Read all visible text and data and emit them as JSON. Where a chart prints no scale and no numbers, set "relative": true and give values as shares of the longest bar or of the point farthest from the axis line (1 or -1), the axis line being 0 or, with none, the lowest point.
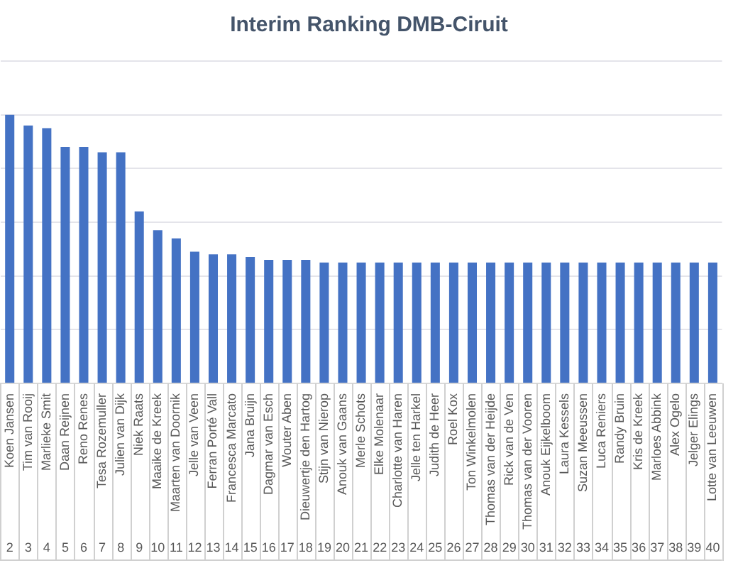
{
  "chart_data": {
    "type": "bar",
    "title": "Interim Ranking DMB-Ciruit",
    "categories": [
      "Koen Jansen",
      "Tim van Rooij",
      "Marlieke Smit",
      "Daan Reijnen",
      "Reno Renes",
      "Tesa Rozemuller",
      "Julien van Dijk",
      "Niek Raats",
      "Maaike de Kreek",
      "Maarten van Doornik",
      "Jelle van Veen",
      "Ferran Porté Vall",
      "Francesca Marcato",
      "Jana Bruijn",
      "Dagmar van Esch",
      "Wouter Aben",
      "Dieuwertje den Hartog",
      "Stijn van Nierop",
      "Anouk van Gaans",
      "Merle Schots",
      "Elke Molenaar",
      "Charlotte van Haren",
      "Jelle ten Harkel",
      "Judith de Heer",
      "Roel Kox",
      "Ton Winkelmolen",
      "Thomas van der Heijde",
      "Rick van de Ven",
      "Thomas van der Vooren",
      "Anouk Eijkelboom",
      "Laura Kessels",
      "Suzan Meeussen",
      "Luca Reniers",
      "Randy Bruin",
      "Kris de Kreek",
      "Marloes Abbink",
      "Alex Ogelo",
      "Jelger Elings",
      "Lotte van Leeuwen"
    ],
    "values": [
      1,
      0.96,
      0.95,
      0.88,
      0.88,
      0.86,
      0.86,
      0.64,
      0.57,
      0.54,
      0.49,
      0.48,
      0.48,
      0.47,
      0.46,
      0.46,
      0.46,
      0.45,
      0.45,
      0.45,
      0.45,
      0.45,
      0.45,
      0.45,
      0.45,
      0.45,
      0.45,
      0.45,
      0.45,
      0.45,
      0.45,
      0.45,
      0.45,
      0.45,
      0.45,
      0.45,
      0.45,
      0.45,
      0.45
    ],
    "color": "#4472c4",
    "relative": true,
    "grid": "y",
    "annotations": [
      "2",
      "3",
      "4",
      "5",
      "6",
      "7",
      "8",
      "9",
      "10",
      "11",
      "12",
      "13",
      "14",
      "15",
      "16",
      "17",
      "18",
      "19",
      "20",
      "21",
      "22",
      "23",
      "24",
      "25",
      "26",
      "27",
      "28",
      "29",
      "30",
      "31",
      "32",
      "33",
      "34",
      "35",
      "36",
      "37",
      "38",
      "39",
      "40"
    ]
  }
}
